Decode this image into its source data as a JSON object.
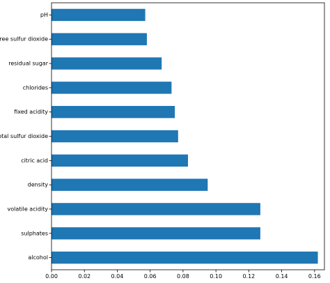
{
  "chart_data": {
    "type": "bar",
    "orientation": "horizontal",
    "title": "",
    "xlabel": "",
    "ylabel": "",
    "categories": [
      "alcohol",
      "sulphates",
      "volatile acidity",
      "density",
      "citric acid",
      "total sulfur dioxide",
      "fixed acidity",
      "chlorides",
      "residual sugar",
      "free sulfur dioxide",
      "pH"
    ],
    "values": [
      0.162,
      0.127,
      0.127,
      0.095,
      0.083,
      0.077,
      0.075,
      0.073,
      0.067,
      0.058,
      0.057
    ],
    "xlim": [
      0,
      0.166
    ],
    "xticks": [
      0.0,
      0.02,
      0.04,
      0.06,
      0.08,
      0.1,
      0.12,
      0.14,
      0.16
    ],
    "xtick_labels": [
      "0.00",
      "0.02",
      "0.04",
      "0.06",
      "0.08",
      "0.10",
      "0.12",
      "0.14",
      "0.16"
    ],
    "grid": false,
    "bar_color": "#1f77b4"
  }
}
